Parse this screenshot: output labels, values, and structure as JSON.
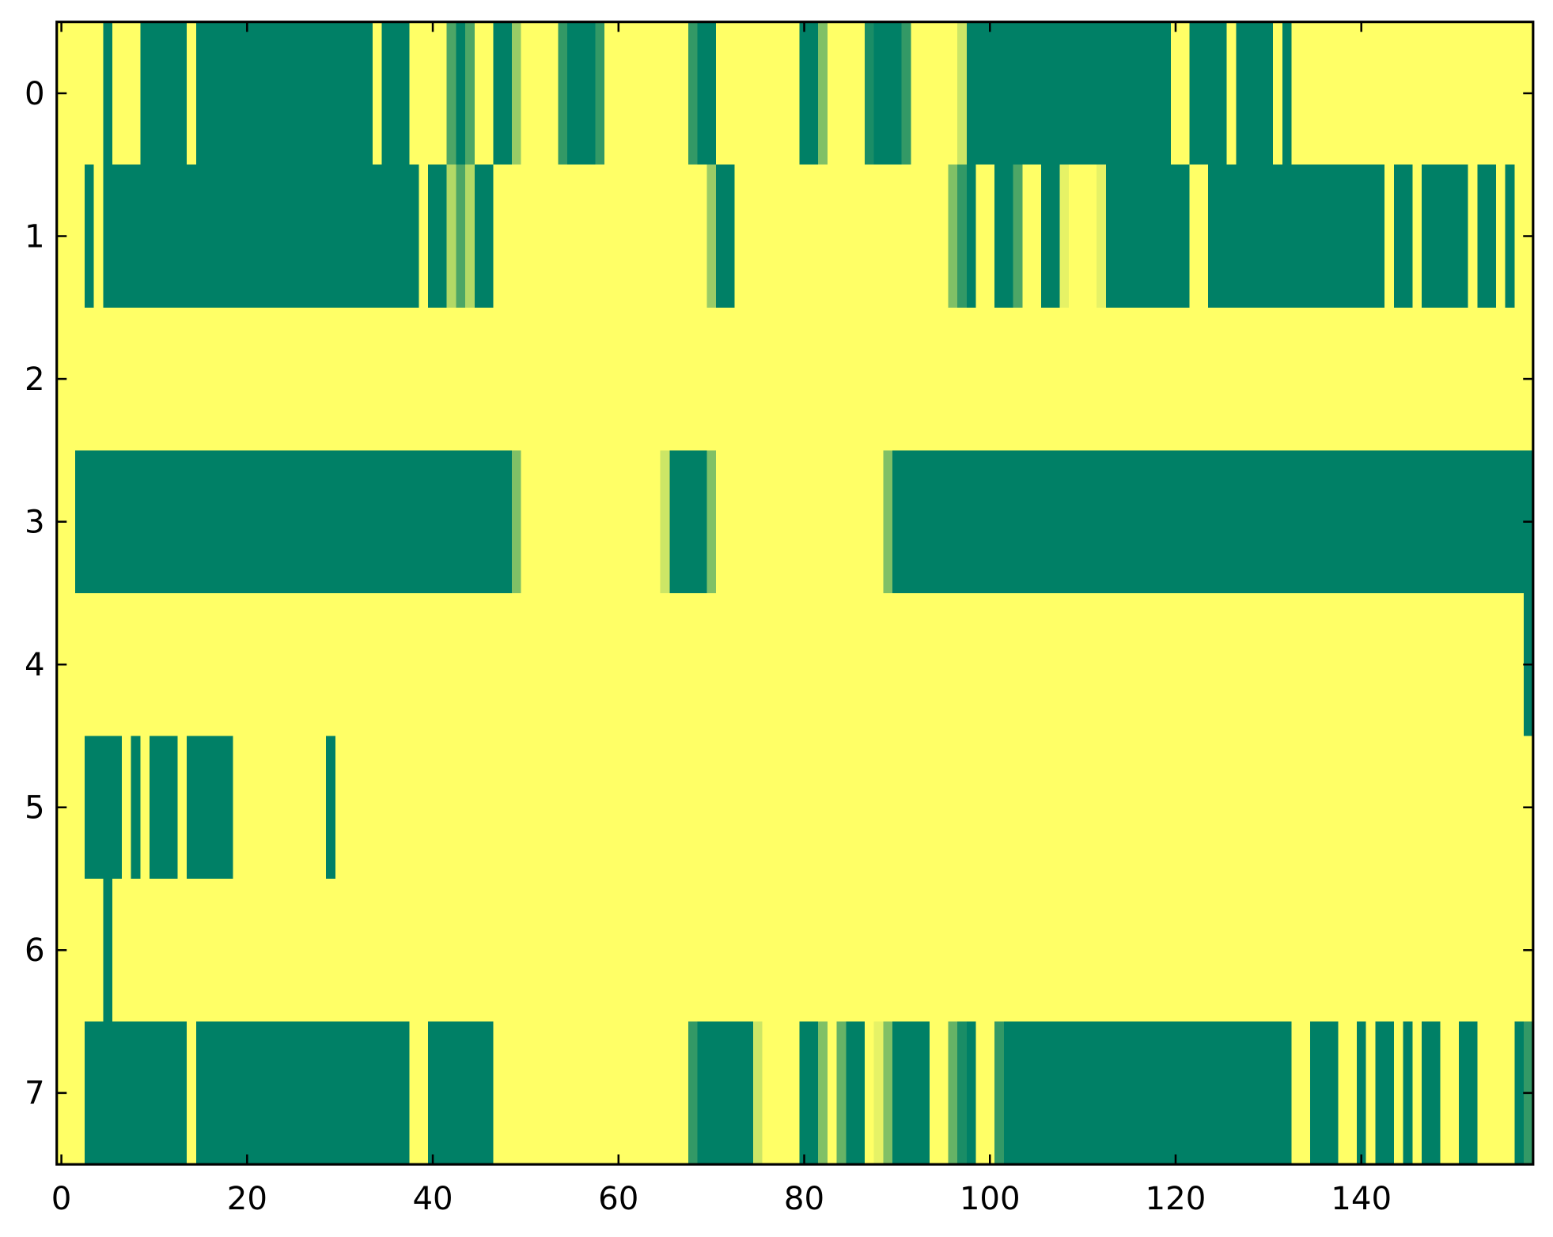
{
  "chart_data": {
    "type": "heatmap",
    "cmap": [
      "#008066",
      "#ffff66"
    ],
    "xlim": [
      -0.5,
      158.5
    ],
    "ylim": [
      7.5,
      -0.5
    ],
    "xticks": [
      0,
      20,
      40,
      60,
      80,
      100,
      120,
      140
    ],
    "yticks": [
      0,
      1,
      2,
      3,
      4,
      5,
      6,
      7
    ],
    "z": [
      [
        1,
        1,
        1,
        1,
        1,
        0,
        1,
        1,
        1,
        0,
        0,
        0,
        0,
        0,
        1,
        0,
        0,
        0,
        0,
        0,
        0,
        0,
        0,
        0,
        0,
        0,
        0,
        0,
        0,
        0,
        0,
        0,
        0,
        0,
        1,
        0,
        0,
        0,
        1,
        1,
        1,
        1,
        0.3,
        0,
        0.3,
        1,
        1,
        0,
        0,
        0.6,
        1,
        1,
        1,
        1,
        0.2,
        0,
        0,
        0,
        0.2,
        1,
        1,
        1,
        1,
        1,
        1,
        1,
        1,
        1,
        0.2,
        0,
        0,
        1,
        1,
        1,
        1,
        1,
        1,
        1,
        1,
        1,
        0,
        0,
        0.5,
        1,
        1,
        1,
        1,
        0.1,
        0,
        0,
        0,
        0.2,
        1,
        1,
        1,
        1,
        1,
        0.8,
        0,
        0,
        0,
        0,
        0,
        0,
        0,
        0,
        0,
        0,
        0,
        0,
        0,
        0,
        0,
        0,
        0,
        0,
        0,
        0,
        0,
        0,
        1,
        1,
        0,
        0,
        0,
        0,
        1,
        0,
        0,
        0,
        0,
        1,
        0,
        1,
        1,
        1,
        1,
        1,
        1,
        1,
        1,
        1,
        1,
        1,
        1,
        1,
        1,
        1,
        1,
        1,
        1,
        1,
        1,
        1,
        1,
        1,
        1,
        1,
        1
      ],
      [
        1,
        1,
        1,
        0,
        1,
        0,
        0,
        0,
        0,
        0,
        0,
        0,
        0,
        0,
        0,
        0,
        0,
        0,
        0,
        0,
        0,
        0,
        0,
        0,
        0,
        0,
        0,
        0,
        0,
        0,
        0,
        0,
        0,
        0,
        0,
        0,
        0,
        0,
        0,
        1,
        0,
        0,
        0.7,
        0.3,
        0.7,
        0,
        0,
        1,
        1,
        1,
        1,
        1,
        1,
        1,
        1,
        1,
        1,
        1,
        1,
        1,
        1,
        1,
        1,
        1,
        1,
        1,
        1,
        1,
        1,
        1,
        0.6,
        0,
        0,
        1,
        1,
        1,
        1,
        1,
        1,
        1,
        1,
        1,
        1,
        1,
        1,
        1,
        1,
        1,
        1,
        1,
        1,
        1,
        1,
        1,
        1,
        1,
        0.5,
        0.2,
        0,
        1,
        1,
        0,
        0,
        0.3,
        1,
        1,
        0,
        0,
        0.9,
        1,
        1,
        1,
        0.9,
        0,
        0,
        0,
        0,
        0,
        0,
        0,
        0,
        0,
        1,
        1,
        0,
        0,
        0,
        0,
        0,
        0,
        0,
        0,
        0,
        0,
        0,
        0,
        0,
        0,
        0,
        0,
        0,
        0,
        0,
        1,
        0,
        0,
        1,
        0,
        0,
        0,
        0,
        0,
        1,
        0,
        0,
        1,
        0,
        1,
        1
      ],
      [
        1,
        1,
        1,
        1,
        1,
        1,
        1,
        1,
        1,
        1,
        1,
        1,
        1,
        1,
        1,
        1,
        1,
        1,
        1,
        1,
        1,
        1,
        1,
        1,
        1,
        1,
        1,
        1,
        1,
        1,
        1,
        1,
        1,
        1,
        1,
        1,
        1,
        1,
        1,
        1,
        1,
        1,
        1,
        1,
        1,
        1,
        1,
        1,
        1,
        1,
        1,
        1,
        1,
        1,
        1,
        1,
        1,
        1,
        1,
        1,
        1,
        1,
        1,
        1,
        1,
        1,
        1,
        1,
        1,
        1,
        1,
        1,
        1,
        1,
        1,
        1,
        1,
        1,
        1,
        1,
        1,
        1,
        1,
        1,
        1,
        1,
        1,
        1,
        1,
        1,
        1,
        1,
        1,
        1,
        1,
        1,
        1,
        1,
        1,
        1,
        1,
        1,
        1,
        1,
        1,
        1,
        1,
        1,
        1,
        1,
        1,
        1,
        1,
        1,
        1,
        1,
        1,
        1,
        1,
        1,
        1,
        1,
        1,
        1,
        1,
        1,
        1,
        1,
        1,
        1,
        1,
        1,
        1,
        1,
        1,
        1,
        1,
        1,
        1,
        1,
        1,
        1,
        1,
        1,
        1,
        1,
        1,
        1,
        1,
        1,
        1,
        1,
        1,
        1,
        1,
        1,
        1,
        1,
        1
      ],
      [
        1,
        1,
        0,
        0,
        0,
        0,
        0,
        0,
        0,
        0,
        0,
        0,
        0,
        0,
        0,
        0,
        0,
        0,
        0,
        0,
        0,
        0,
        0,
        0,
        0,
        0,
        0,
        0,
        0,
        0,
        0,
        0,
        0,
        0,
        0,
        0,
        0,
        0,
        0,
        0,
        0,
        0,
        0,
        0,
        0,
        0,
        0,
        0,
        0,
        0.5,
        1,
        1,
        1,
        1,
        1,
        1,
        1,
        1,
        1,
        1,
        1,
        1,
        1,
        1,
        1,
        0.8,
        0,
        0,
        0,
        0,
        0.5,
        1,
        1,
        1,
        1,
        1,
        1,
        1,
        1,
        1,
        1,
        1,
        1,
        1,
        1,
        1,
        1,
        1,
        1,
        0.5,
        0,
        0,
        0,
        0,
        0,
        0,
        0,
        0,
        0,
        0,
        0,
        0,
        0,
        0,
        0,
        0,
        0,
        0,
        0,
        0,
        0,
        0,
        0,
        0,
        0,
        0,
        0,
        0,
        0,
        0,
        0,
        0,
        0,
        0,
        0,
        0,
        0,
        0,
        0,
        0,
        0,
        0,
        0,
        0,
        0,
        0,
        0,
        0,
        0,
        0,
        0,
        0,
        0,
        0,
        0,
        0,
        0,
        0,
        0,
        0,
        0,
        0,
        0,
        0,
        0,
        0,
        0,
        0,
        0
      ],
      [
        1,
        1,
        1,
        1,
        1,
        1,
        1,
        1,
        1,
        1,
        1,
        1,
        1,
        1,
        1,
        1,
        1,
        1,
        1,
        1,
        1,
        1,
        1,
        1,
        1,
        1,
        1,
        1,
        1,
        1,
        1,
        1,
        1,
        1,
        1,
        1,
        1,
        1,
        1,
        1,
        1,
        1,
        1,
        1,
        1,
        1,
        1,
        1,
        1,
        1,
        1,
        1,
        1,
        1,
        1,
        1,
        1,
        1,
        1,
        1,
        1,
        1,
        1,
        1,
        1,
        1,
        1,
        1,
        1,
        1,
        1,
        1,
        1,
        1,
        1,
        1,
        1,
        1,
        1,
        1,
        1,
        1,
        1,
        1,
        1,
        1,
        1,
        1,
        1,
        1,
        1,
        1,
        1,
        1,
        1,
        1,
        1,
        1,
        1,
        1,
        1,
        1,
        1,
        1,
        1,
        1,
        1,
        1,
        1,
        1,
        1,
        1,
        1,
        1,
        1,
        1,
        1,
        1,
        1,
        1,
        1,
        1,
        1,
        1,
        1,
        1,
        1,
        1,
        1,
        1,
        1,
        1,
        1,
        1,
        1,
        1,
        1,
        1,
        1,
        1,
        1,
        1,
        1,
        1,
        1,
        1,
        1,
        1,
        1,
        1,
        1,
        1,
        1,
        1,
        1,
        1,
        1,
        1,
        0
      ],
      [
        1,
        1,
        1,
        0,
        0,
        0,
        0,
        1,
        0,
        1,
        0,
        0,
        0,
        1,
        0,
        0,
        0,
        0,
        0,
        1,
        1,
        1,
        1,
        1,
        1,
        1,
        1,
        1,
        1,
        0,
        1,
        1,
        1,
        1,
        1,
        1,
        1,
        1,
        1,
        1,
        1,
        1,
        1,
        1,
        1,
        1,
        1,
        1,
        1,
        1,
        1,
        1,
        1,
        1,
        1,
        1,
        1,
        1,
        1,
        1,
        1,
        1,
        1,
        1,
        1,
        1,
        1,
        1,
        1,
        1,
        1,
        1,
        1,
        1,
        1,
        1,
        1,
        1,
        1,
        1,
        1,
        1,
        1,
        1,
        1,
        1,
        1,
        1,
        1,
        1,
        1,
        1,
        1,
        1,
        1,
        1,
        1,
        1,
        1,
        1,
        1,
        1,
        1,
        1,
        1,
        1,
        1,
        1,
        1,
        1,
        1,
        1,
        1,
        1,
        1,
        1,
        1,
        1,
        1,
        1,
        1,
        1,
        1,
        1,
        1,
        1,
        1,
        1,
        1,
        1,
        1,
        1,
        1,
        1,
        1,
        1,
        1,
        1,
        1,
        1,
        1,
        1,
        1,
        1,
        1,
        1,
        1,
        1,
        1,
        1,
        1,
        1,
        1,
        1,
        1,
        1,
        1,
        1,
        1
      ],
      [
        1,
        1,
        1,
        1,
        1,
        0,
        1,
        1,
        1,
        1,
        1,
        1,
        1,
        1,
        1,
        1,
        1,
        1,
        1,
        1,
        1,
        1,
        1,
        1,
        1,
        1,
        1,
        1,
        1,
        1,
        1,
        1,
        1,
        1,
        1,
        1,
        1,
        1,
        1,
        1,
        1,
        1,
        1,
        1,
        1,
        1,
        1,
        1,
        1,
        1,
        1,
        1,
        1,
        1,
        1,
        1,
        1,
        1,
        1,
        1,
        1,
        1,
        1,
        1,
        1,
        1,
        1,
        1,
        1,
        1,
        1,
        1,
        1,
        1,
        1,
        1,
        1,
        1,
        1,
        1,
        1,
        1,
        1,
        1,
        1,
        1,
        1,
        1,
        1,
        1,
        1,
        1,
        1,
        1,
        1,
        1,
        1,
        1,
        1,
        1,
        1,
        1,
        1,
        1,
        1,
        1,
        1,
        1,
        1,
        1,
        1,
        1,
        1,
        1,
        1,
        1,
        1,
        1,
        1,
        1,
        1,
        1,
        1,
        1,
        1,
        1,
        1,
        1,
        1,
        1,
        1,
        1,
        1,
        1,
        1,
        1,
        1,
        1,
        1,
        1,
        1,
        1,
        1,
        1,
        1,
        1,
        1,
        1,
        1,
        1,
        1,
        1,
        1,
        1,
        1,
        1,
        1,
        1,
        1
      ],
      [
        1,
        1,
        1,
        0,
        0,
        0,
        0,
        0,
        0,
        0,
        0,
        0,
        0,
        0,
        1,
        0,
        0,
        0,
        0,
        0,
        0,
        0,
        0,
        0,
        0,
        0,
        0,
        0,
        0,
        0,
        0,
        0,
        0,
        0,
        0,
        0,
        0,
        0,
        1,
        1,
        0,
        0,
        0,
        0,
        0,
        0,
        0,
        1,
        1,
        1,
        1,
        1,
        1,
        1,
        1,
        1,
        1,
        1,
        1,
        1,
        1,
        1,
        1,
        1,
        1,
        1,
        1,
        1,
        0.2,
        0,
        0,
        0,
        0,
        0,
        0,
        0.8,
        1,
        1,
        1,
        1,
        0,
        0,
        0.5,
        1,
        0.4,
        0,
        0,
        1,
        0.9,
        0.5,
        0,
        0,
        0,
        0,
        1,
        1,
        0.4,
        0.1,
        0,
        1,
        1,
        0.2,
        0,
        0,
        0,
        0,
        0,
        0,
        0,
        0,
        0,
        0,
        0,
        0,
        0,
        0,
        0,
        0,
        0,
        0,
        0,
        0,
        0,
        0,
        0,
        0,
        0,
        0,
        0,
        0,
        0,
        0,
        0,
        1,
        1,
        0,
        0,
        0,
        1,
        1,
        0,
        1,
        0,
        0,
        1,
        0,
        1,
        0,
        0,
        1,
        1,
        0,
        0,
        1,
        1,
        1,
        1,
        0,
        0.2
      ]
    ]
  }
}
